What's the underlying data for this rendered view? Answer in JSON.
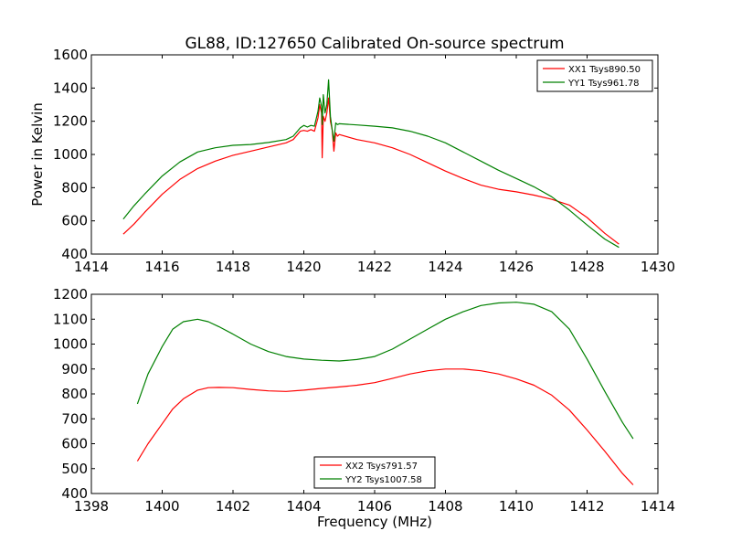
{
  "figure_title": "GL88, ID:127650 Calibrated On-source spectrum",
  "chart_data": [
    {
      "type": "line",
      "title": "GL88, ID:127650 Calibrated On-source spectrum",
      "xlabel": "",
      "ylabel": "Power in Kelvin",
      "xlim": [
        1414,
        1430
      ],
      "ylim": [
        400,
        1600
      ],
      "xticks": [
        1414,
        1416,
        1418,
        1420,
        1422,
        1424,
        1426,
        1428,
        1430
      ],
      "yticks": [
        400,
        600,
        800,
        1000,
        1200,
        1400,
        1600
      ],
      "grid": false,
      "legend_position": "top-right",
      "series": [
        {
          "name": "XX1 Tsys890.50",
          "color": "#ff0000",
          "x": [
            1414.9,
            1415.2,
            1415.5,
            1416.0,
            1416.5,
            1417.0,
            1417.5,
            1418.0,
            1418.5,
            1419.0,
            1419.5,
            1419.7,
            1419.9,
            1420.0,
            1420.1,
            1420.2,
            1420.3,
            1420.4,
            1420.45,
            1420.5,
            1420.52,
            1420.55,
            1420.6,
            1420.65,
            1420.7,
            1420.75,
            1420.8,
            1420.85,
            1420.9,
            1420.95,
            1421.0,
            1421.5,
            1422.0,
            1422.5,
            1423.0,
            1423.5,
            1424.0,
            1424.5,
            1425.0,
            1425.5,
            1426.0,
            1426.5,
            1427.0,
            1427.5,
            1428.0,
            1428.5,
            1428.9
          ],
          "y": [
            520,
            580,
            650,
            760,
            850,
            915,
            960,
            995,
            1020,
            1045,
            1070,
            1090,
            1140,
            1145,
            1140,
            1150,
            1140,
            1220,
            1300,
            1250,
            980,
            1230,
            1200,
            1250,
            1340,
            1200,
            1150,
            1020,
            1130,
            1110,
            1120,
            1090,
            1070,
            1040,
            1000,
            950,
            900,
            855,
            815,
            790,
            775,
            755,
            730,
            695,
            620,
            525,
            460
          ]
        },
        {
          "name": "YY1 Tsys961.78",
          "color": "#008000",
          "x": [
            1414.9,
            1415.2,
            1415.5,
            1416.0,
            1416.5,
            1417.0,
            1417.5,
            1418.0,
            1418.5,
            1419.0,
            1419.5,
            1419.7,
            1419.9,
            1420.0,
            1420.1,
            1420.2,
            1420.3,
            1420.4,
            1420.45,
            1420.5,
            1420.52,
            1420.55,
            1420.6,
            1420.65,
            1420.7,
            1420.75,
            1420.8,
            1420.85,
            1420.9,
            1420.95,
            1421.0,
            1421.5,
            1422.0,
            1422.5,
            1423.0,
            1423.5,
            1424.0,
            1424.5,
            1425.0,
            1425.5,
            1426.0,
            1426.5,
            1427.0,
            1427.5,
            1428.0,
            1428.5,
            1428.9
          ],
          "y": [
            610,
            690,
            760,
            870,
            955,
            1015,
            1040,
            1055,
            1060,
            1072,
            1090,
            1110,
            1160,
            1175,
            1165,
            1175,
            1170,
            1260,
            1340,
            1290,
            1180,
            1360,
            1250,
            1300,
            1450,
            1230,
            1150,
            1080,
            1190,
            1180,
            1185,
            1178,
            1170,
            1160,
            1140,
            1110,
            1070,
            1015,
            960,
            905,
            855,
            805,
            745,
            665,
            575,
            490,
            440
          ]
        }
      ]
    },
    {
      "type": "line",
      "title": "",
      "xlabel": "Frequency (MHz)",
      "ylabel": "",
      "xlim": [
        1398,
        1414
      ],
      "ylim": [
        400,
        1200
      ],
      "xticks": [
        1398,
        1400,
        1402,
        1404,
        1406,
        1408,
        1410,
        1412,
        1414
      ],
      "yticks": [
        400,
        500,
        600,
        700,
        800,
        900,
        1000,
        1100,
        1200
      ],
      "grid": false,
      "legend_position": "bottom-center",
      "series": [
        {
          "name": "XX2 Tsys791.57",
          "color": "#ff0000",
          "x": [
            1399.3,
            1399.6,
            1400.0,
            1400.3,
            1400.6,
            1401.0,
            1401.3,
            1401.6,
            1402.0,
            1402.5,
            1403.0,
            1403.5,
            1404.0,
            1404.5,
            1405.0,
            1405.5,
            1406.0,
            1406.5,
            1407.0,
            1407.5,
            1408.0,
            1408.5,
            1409.0,
            1409.5,
            1410.0,
            1410.5,
            1411.0,
            1411.5,
            1412.0,
            1412.5,
            1413.0,
            1413.3
          ],
          "y": [
            530,
            600,
            680,
            740,
            780,
            815,
            825,
            826,
            825,
            818,
            812,
            810,
            815,
            822,
            828,
            835,
            845,
            862,
            880,
            893,
            900,
            900,
            893,
            880,
            860,
            835,
            795,
            735,
            655,
            570,
            480,
            435
          ]
        },
        {
          "name": "YY2 Tsys1007.58",
          "color": "#008000",
          "x": [
            1399.3,
            1399.6,
            1400.0,
            1400.3,
            1400.6,
            1401.0,
            1401.3,
            1401.6,
            1402.0,
            1402.5,
            1403.0,
            1403.5,
            1404.0,
            1404.5,
            1405.0,
            1405.5,
            1406.0,
            1406.5,
            1407.0,
            1407.5,
            1408.0,
            1408.5,
            1409.0,
            1409.5,
            1410.0,
            1410.5,
            1411.0,
            1411.5,
            1412.0,
            1412.5,
            1413.0,
            1413.3
          ],
          "y": [
            760,
            880,
            990,
            1060,
            1090,
            1100,
            1090,
            1070,
            1040,
            1000,
            970,
            950,
            940,
            935,
            932,
            938,
            950,
            980,
            1020,
            1060,
            1100,
            1130,
            1155,
            1165,
            1168,
            1160,
            1130,
            1060,
            940,
            810,
            685,
            620
          ]
        }
      ]
    }
  ]
}
